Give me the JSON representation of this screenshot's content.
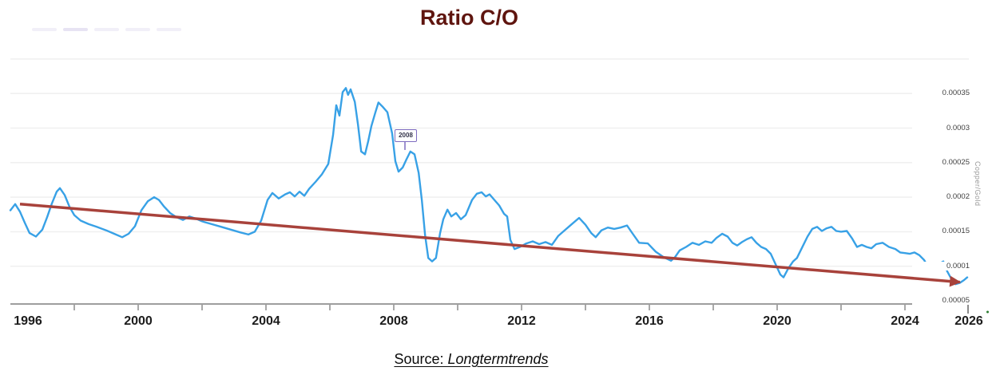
{
  "title": {
    "text": "Ratio C/O",
    "color": "#5f150f"
  },
  "source": {
    "prefix": "Source: ",
    "name": "Longtermtrends"
  },
  "hidden_legend": {
    "count": 5,
    "dash_color": "#f1eff8",
    "emphasized_index": 1,
    "emphasized_color": "#e7e3f3"
  },
  "annotation": {
    "label": "2008",
    "year": 2008.35,
    "attach_value_e6": 266,
    "border_color": "#7e6cc0"
  },
  "colors": {
    "series_blue": "#38a1e6",
    "trend_red": "#a8423b",
    "gridline": "#f0f0f0",
    "axis_line": "#9e9e9e",
    "tick": "#8c8c8c",
    "x_label": "#1c1c1c",
    "y_label": "#3f3f3f",
    "axis_title": "#9a9a9a",
    "green_dot": "#2e7d32"
  },
  "chart_data": {
    "type": "line",
    "title": "Ratio C/O",
    "xlabel": "",
    "ylabel": "Copper/Gold",
    "legend_position": "hidden",
    "grid": true,
    "xlim": [
      1996,
      2026
    ],
    "x_tick_years": [
      1998,
      2000,
      2002,
      2004,
      2006,
      2008,
      2010,
      2012,
      2014,
      2016,
      2018,
      2020,
      2022,
      2024
    ],
    "x_label_years": [
      1996,
      2000,
      2004,
      2008,
      2012,
      2016,
      2020,
      2024,
      2026
    ],
    "y_tick_labels": [
      "0.00035",
      "0.0003",
      "0.00025",
      "0.0002",
      "0.00015",
      "0.0001",
      "0.00005"
    ],
    "y_tick_values_e6": [
      350,
      300,
      250,
      200,
      150,
      100,
      50
    ],
    "y_gridline_values_e6": [
      400,
      350,
      300,
      250,
      200,
      150,
      100
    ],
    "value_unit_multiplier": 1e-06,
    "series": [
      {
        "name": "Copper/Gold",
        "color": "#38a1e6",
        "points_year_value_e6": [
          [
            1996.0,
            181
          ],
          [
            1996.15,
            190
          ],
          [
            1996.3,
            179
          ],
          [
            1996.45,
            163
          ],
          [
            1996.6,
            148
          ],
          [
            1996.8,
            143
          ],
          [
            1997.0,
            153
          ],
          [
            1997.15,
            171
          ],
          [
            1997.3,
            191
          ],
          [
            1997.45,
            208
          ],
          [
            1997.55,
            213
          ],
          [
            1997.7,
            203
          ],
          [
            1997.85,
            186
          ],
          [
            1998.0,
            174
          ],
          [
            1998.2,
            166
          ],
          [
            1998.45,
            161
          ],
          [
            1998.7,
            157
          ],
          [
            1999.0,
            152
          ],
          [
            1999.25,
            147
          ],
          [
            1999.5,
            142
          ],
          [
            1999.7,
            147
          ],
          [
            1999.9,
            158
          ],
          [
            2000.1,
            181
          ],
          [
            2000.3,
            194
          ],
          [
            2000.5,
            200
          ],
          [
            2000.65,
            196
          ],
          [
            2000.8,
            187
          ],
          [
            2001.0,
            177
          ],
          [
            2001.2,
            171
          ],
          [
            2001.4,
            167
          ],
          [
            2001.6,
            172
          ],
          [
            2001.8,
            169
          ],
          [
            2002.0,
            165
          ],
          [
            2002.3,
            161
          ],
          [
            2002.6,
            157
          ],
          [
            2002.9,
            153
          ],
          [
            2003.2,
            149
          ],
          [
            2003.45,
            146
          ],
          [
            2003.65,
            150
          ],
          [
            2003.85,
            166
          ],
          [
            2004.05,
            196
          ],
          [
            2004.2,
            206
          ],
          [
            2004.4,
            198
          ],
          [
            2004.6,
            204
          ],
          [
            2004.75,
            207
          ],
          [
            2004.9,
            201
          ],
          [
            2005.05,
            208
          ],
          [
            2005.2,
            202
          ],
          [
            2005.35,
            212
          ],
          [
            2005.55,
            222
          ],
          [
            2005.75,
            233
          ],
          [
            2005.95,
            248
          ],
          [
            2006.1,
            290
          ],
          [
            2006.2,
            333
          ],
          [
            2006.3,
            318
          ],
          [
            2006.4,
            352
          ],
          [
            2006.5,
            358
          ],
          [
            2006.57,
            348
          ],
          [
            2006.65,
            356
          ],
          [
            2006.78,
            338
          ],
          [
            2006.88,
            305
          ],
          [
            2006.98,
            266
          ],
          [
            2007.1,
            262
          ],
          [
            2007.2,
            281
          ],
          [
            2007.3,
            303
          ],
          [
            2007.42,
            322
          ],
          [
            2007.52,
            337
          ],
          [
            2007.65,
            331
          ],
          [
            2007.8,
            323
          ],
          [
            2007.95,
            292
          ],
          [
            2008.05,
            252
          ],
          [
            2008.15,
            237
          ],
          [
            2008.28,
            243
          ],
          [
            2008.4,
            255
          ],
          [
            2008.52,
            266
          ],
          [
            2008.65,
            262
          ],
          [
            2008.78,
            235
          ],
          [
            2008.88,
            195
          ],
          [
            2008.98,
            145
          ],
          [
            2009.08,
            112
          ],
          [
            2009.2,
            107
          ],
          [
            2009.32,
            112
          ],
          [
            2009.45,
            148
          ],
          [
            2009.55,
            168
          ],
          [
            2009.68,
            182
          ],
          [
            2009.8,
            172
          ],
          [
            2009.95,
            177
          ],
          [
            2010.1,
            168
          ],
          [
            2010.25,
            174
          ],
          [
            2010.45,
            196
          ],
          [
            2010.6,
            205
          ],
          [
            2010.75,
            207
          ],
          [
            2010.88,
            201
          ],
          [
            2011.0,
            204
          ],
          [
            2011.15,
            196
          ],
          [
            2011.3,
            188
          ],
          [
            2011.45,
            176
          ],
          [
            2011.55,
            172
          ],
          [
            2011.65,
            138
          ],
          [
            2011.78,
            125
          ],
          [
            2011.95,
            128
          ],
          [
            2012.15,
            133
          ],
          [
            2012.35,
            136
          ],
          [
            2012.55,
            132
          ],
          [
            2012.75,
            135
          ],
          [
            2012.95,
            131
          ],
          [
            2013.15,
            144
          ],
          [
            2013.3,
            150
          ],
          [
            2013.55,
            160
          ],
          [
            2013.8,
            170
          ],
          [
            2014.0,
            160
          ],
          [
            2014.18,
            148
          ],
          [
            2014.32,
            142
          ],
          [
            2014.5,
            152
          ],
          [
            2014.7,
            156
          ],
          [
            2014.9,
            154
          ],
          [
            2015.1,
            156
          ],
          [
            2015.3,
            159
          ],
          [
            2015.48,
            147
          ],
          [
            2015.68,
            134
          ],
          [
            2015.95,
            133
          ],
          [
            2016.2,
            121
          ],
          [
            2016.45,
            113
          ],
          [
            2016.68,
            108
          ],
          [
            2016.8,
            113
          ],
          [
            2016.95,
            123
          ],
          [
            2017.15,
            128
          ],
          [
            2017.35,
            134
          ],
          [
            2017.55,
            131
          ],
          [
            2017.75,
            136
          ],
          [
            2017.95,
            134
          ],
          [
            2018.1,
            141
          ],
          [
            2018.28,
            147
          ],
          [
            2018.45,
            143
          ],
          [
            2018.6,
            134
          ],
          [
            2018.75,
            130
          ],
          [
            2018.9,
            135
          ],
          [
            2019.05,
            139
          ],
          [
            2019.2,
            142
          ],
          [
            2019.35,
            134
          ],
          [
            2019.5,
            128
          ],
          [
            2019.65,
            125
          ],
          [
            2019.8,
            118
          ],
          [
            2019.95,
            103
          ],
          [
            2020.1,
            88
          ],
          [
            2020.2,
            84
          ],
          [
            2020.35,
            97
          ],
          [
            2020.5,
            107
          ],
          [
            2020.62,
            112
          ],
          [
            2020.78,
            127
          ],
          [
            2020.95,
            143
          ],
          [
            2021.1,
            154
          ],
          [
            2021.25,
            157
          ],
          [
            2021.4,
            151
          ],
          [
            2021.55,
            155
          ],
          [
            2021.7,
            157
          ],
          [
            2021.85,
            151
          ],
          [
            2022.0,
            150
          ],
          [
            2022.18,
            151
          ],
          [
            2022.35,
            140
          ],
          [
            2022.5,
            128
          ],
          [
            2022.65,
            131
          ],
          [
            2022.8,
            128
          ],
          [
            2022.95,
            126
          ],
          [
            2023.1,
            132
          ],
          [
            2023.3,
            134
          ],
          [
            2023.5,
            128
          ],
          [
            2023.7,
            125
          ],
          [
            2023.85,
            120
          ],
          [
            2024.0,
            119
          ],
          [
            2024.15,
            118
          ],
          [
            2024.3,
            120
          ],
          [
            2024.45,
            116
          ],
          [
            2024.6,
            109
          ],
          [
            2024.75,
            97
          ],
          [
            2024.88,
            100
          ],
          [
            2025.05,
            103
          ],
          [
            2025.2,
            107
          ],
          [
            2025.32,
            93
          ],
          [
            2025.45,
            82
          ],
          [
            2025.58,
            74
          ],
          [
            2025.72,
            76
          ],
          [
            2025.85,
            80
          ],
          [
            2025.95,
            84
          ]
        ]
      }
    ],
    "trend_line": {
      "name": "downtrend-arrow",
      "color": "#a8423b",
      "start_year_value_e6": [
        1996.3,
        190
      ],
      "end_year_value_e6": [
        2025.72,
        77
      ],
      "arrow_end": true
    }
  }
}
